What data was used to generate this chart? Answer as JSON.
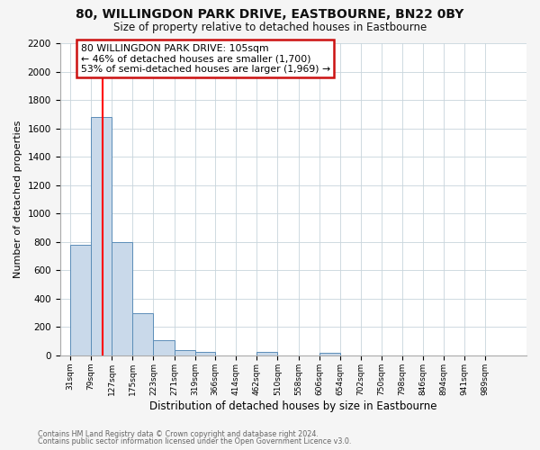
{
  "title1": "80, WILLINGDON PARK DRIVE, EASTBOURNE, BN22 0BY",
  "title2": "Size of property relative to detached houses in Eastbourne",
  "xlabel": "Distribution of detached houses by size in Eastbourne",
  "ylabel": "Number of detached properties",
  "bin_labels": [
    "31sqm",
    "79sqm",
    "127sqm",
    "175sqm",
    "223sqm",
    "271sqm",
    "319sqm",
    "366sqm",
    "414sqm",
    "462sqm",
    "510sqm",
    "558sqm",
    "606sqm",
    "654sqm",
    "702sqm",
    "750sqm",
    "798sqm",
    "846sqm",
    "894sqm",
    "941sqm",
    "989sqm"
  ],
  "bin_edges": [
    31,
    79,
    127,
    175,
    223,
    271,
    319,
    366,
    414,
    462,
    510,
    558,
    606,
    654,
    702,
    750,
    798,
    846,
    894,
    941,
    989,
    1037
  ],
  "bar_heights": [
    780,
    1680,
    800,
    300,
    110,
    35,
    25,
    0,
    0,
    25,
    0,
    0,
    20,
    0,
    0,
    0,
    0,
    0,
    0,
    0,
    0
  ],
  "bar_color": "#c9d9ea",
  "bar_edgecolor": "#5b8db8",
  "red_line_x": 105,
  "ylim": [
    0,
    2200
  ],
  "yticks": [
    0,
    200,
    400,
    600,
    800,
    1000,
    1200,
    1400,
    1600,
    1800,
    2000,
    2200
  ],
  "annotation_title": "80 WILLINGDON PARK DRIVE: 105sqm",
  "annotation_line1": "← 46% of detached houses are smaller (1,700)",
  "annotation_line2": "53% of semi-detached houses are larger (1,969) →",
  "annotation_box_edgecolor": "#cc1111",
  "footer1": "Contains HM Land Registry data © Crown copyright and database right 2024.",
  "footer2": "Contains public sector information licensed under the Open Government Licence v3.0.",
  "bg_color": "#f5f5f5",
  "plot_bg_color": "#ffffff",
  "grid_color": "#c8d4dc"
}
